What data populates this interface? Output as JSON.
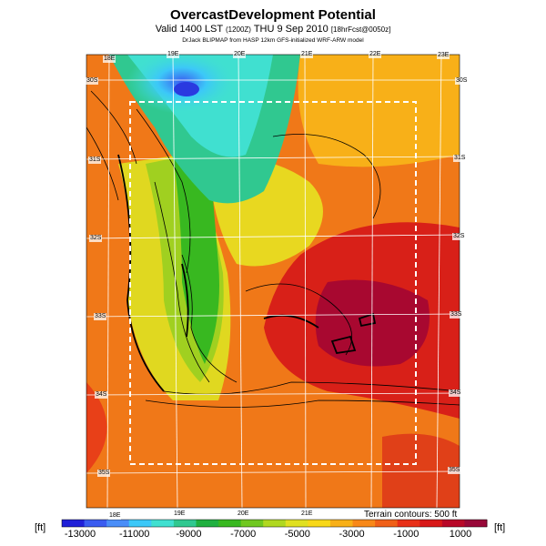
{
  "header": {
    "title": "OvercastDevelopment Potential",
    "subtitle_main": "Valid 1400 LST",
    "subtitle_utc": "(1200Z)",
    "subtitle_date": "THU 9 Sep 2010",
    "subtitle_fcst": "[18hrFcst@0050z]",
    "credit": "DrJack BLIPMAP from HASP 12km GFS-initialized WRF-ARW model"
  },
  "map": {
    "top_lon_labels": [
      "18E",
      "19E",
      "20E",
      "21E",
      "22E",
      "23E"
    ],
    "bottom_lon_labels": [
      "18E",
      "19E",
      "20E",
      "21E"
    ],
    "left_lat_labels": [
      "30S",
      "31S",
      "32S",
      "33S",
      "34S",
      "35S"
    ],
    "right_lat_labels": [
      "30S",
      "31S",
      "32S",
      "33S",
      "34S",
      "35S"
    ],
    "terrain_note": "Terrain contours: 500 ft"
  },
  "legend": {
    "unit_left": "[ft]",
    "unit_right": "[ft]",
    "ticks": [
      "-13000",
      "-11000",
      "-9000",
      "-7000",
      "-5000",
      "-3000",
      "-1000",
      "1000"
    ],
    "colors": [
      "#2020d8",
      "#3a5cf0",
      "#4a8ef8",
      "#3cc8f8",
      "#40e0d0",
      "#30c890",
      "#20b040",
      "#38b820",
      "#70c820",
      "#b0d820",
      "#e0e020",
      "#f8d818",
      "#f8b018",
      "#f88818",
      "#f06018",
      "#e83018",
      "#d81818",
      "#b80828",
      "#980838"
    ]
  }
}
